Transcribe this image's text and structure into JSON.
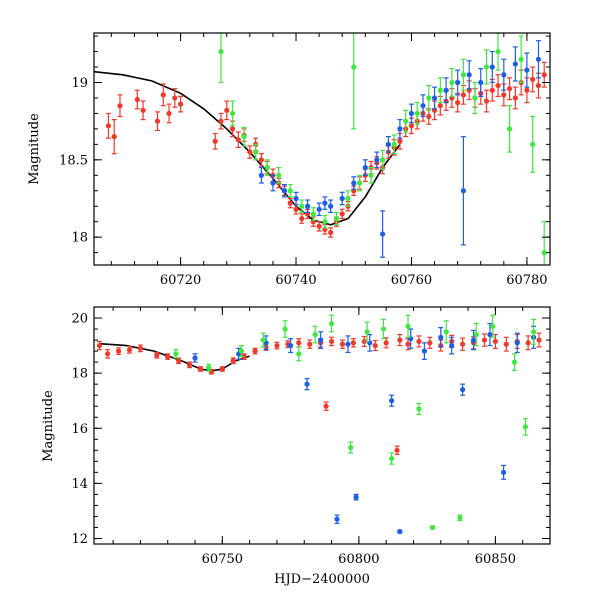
{
  "chart_data": [
    {
      "type": "scatter",
      "xlabel": "",
      "ylabel": "Magnitude",
      "xlim": [
        60705,
        60784
      ],
      "ylim": [
        19.32,
        17.82
      ],
      "y_inverted": true,
      "xticks": [
        60720,
        60740,
        60760,
        60780
      ],
      "yticks": [
        18,
        18.5,
        19
      ],
      "xtick_labels": [
        "60720",
        "60740",
        "60760",
        "60780"
      ],
      "ytick_labels": [
        "18",
        "18.5",
        "19"
      ],
      "model_curve": {
        "color": "#000000",
        "x": [
          60705,
          60710,
          60715,
          60720,
          60724,
          60728,
          60732,
          60736,
          60740,
          60743,
          60746,
          60749,
          60752,
          60755,
          60758
        ],
        "y": [
          19.07,
          19.05,
          19.01,
          18.93,
          18.83,
          18.7,
          18.55,
          18.38,
          18.2,
          18.11,
          18.08,
          18.12,
          18.26,
          18.45,
          18.6
        ]
      },
      "series": [
        {
          "color": "#ef3a2b",
          "x": [
            60707.5,
            60708.5,
            60709.5,
            60712.5,
            60713.5,
            60716,
            60717,
            60718,
            60719,
            60720,
            60726,
            60727,
            60728,
            60729,
            60730,
            60731,
            60732,
            60733,
            60734,
            60735,
            60736,
            60737,
            60738,
            60739,
            60740,
            60741,
            60742,
            60743,
            60744,
            60745,
            60746,
            60747,
            60748,
            60749,
            60750,
            60751,
            60752,
            60753,
            60754,
            60755,
            60756,
            60757,
            60758,
            60759,
            60760,
            60761,
            60762,
            60763,
            60764,
            60765,
            60766,
            60767,
            60768,
            60769,
            60770,
            60771,
            60772,
            60773,
            60774,
            60775,
            60776,
            60777,
            60778,
            60779,
            60780,
            60781,
            60782,
            60783
          ],
          "y": [
            18.72,
            18.65,
            18.85,
            18.89,
            18.82,
            18.75,
            18.92,
            18.8,
            18.9,
            18.86,
            18.62,
            18.75,
            18.82,
            18.7,
            18.63,
            18.66,
            18.55,
            18.6,
            18.5,
            18.45,
            18.4,
            18.35,
            18.3,
            18.22,
            18.18,
            18.12,
            18.15,
            18.1,
            18.07,
            18.05,
            18.03,
            18.1,
            18.15,
            18.2,
            18.3,
            18.35,
            18.4,
            18.45,
            18.48,
            18.45,
            18.55,
            18.58,
            18.62,
            18.7,
            18.72,
            18.75,
            18.8,
            18.78,
            18.82,
            18.85,
            18.88,
            18.9,
            18.87,
            18.92,
            18.95,
            18.9,
            18.93,
            18.88,
            18.95,
            18.98,
            18.92,
            18.96,
            18.9,
            19.0,
            18.95,
            19.02,
            18.98,
            19.05
          ],
          "err": [
            0.08,
            0.11,
            0.07,
            0.06,
            0.06,
            0.06,
            0.07,
            0.06,
            0.06,
            0.05,
            0.05,
            0.05,
            0.06,
            0.05,
            0.05,
            0.04,
            0.04,
            0.04,
            0.04,
            0.04,
            0.04,
            0.03,
            0.03,
            0.03,
            0.03,
            0.03,
            0.03,
            0.03,
            0.03,
            0.03,
            0.03,
            0.03,
            0.03,
            0.03,
            0.03,
            0.04,
            0.04,
            0.04,
            0.04,
            0.04,
            0.04,
            0.05,
            0.05,
            0.05,
            0.05,
            0.05,
            0.05,
            0.05,
            0.06,
            0.06,
            0.06,
            0.06,
            0.06,
            0.06,
            0.06,
            0.06,
            0.07,
            0.07,
            0.07,
            0.07,
            0.07,
            0.07,
            0.07,
            0.08,
            0.08,
            0.08,
            0.08,
            0.08
          ]
        },
        {
          "color": "#1c5ee8",
          "x": [
            60734,
            60736,
            60738,
            60740,
            60742,
            60744,
            60745,
            60746,
            60748,
            60750,
            60752,
            60754,
            60755,
            60756,
            60758,
            60760,
            60762,
            60764,
            60766,
            60768,
            60769,
            60770,
            60772,
            60774,
            60776,
            60778,
            60780,
            60782
          ],
          "y": [
            18.4,
            18.35,
            18.3,
            18.25,
            18.2,
            18.18,
            18.22,
            18.2,
            18.25,
            18.35,
            18.45,
            18.5,
            18.02,
            18.6,
            18.7,
            18.8,
            18.85,
            18.9,
            18.95,
            19.0,
            18.3,
            19.05,
            19.0,
            19.1,
            19.05,
            19.12,
            19.08,
            19.15
          ],
          "err": [
            0.05,
            0.05,
            0.04,
            0.04,
            0.04,
            0.04,
            0.04,
            0.04,
            0.04,
            0.04,
            0.05,
            0.05,
            0.15,
            0.05,
            0.06,
            0.06,
            0.07,
            0.07,
            0.08,
            0.08,
            0.35,
            0.09,
            0.09,
            0.1,
            0.1,
            0.11,
            0.11,
            0.12
          ]
        },
        {
          "color": "#3ee83e",
          "x": [
            60727,
            60729,
            60731,
            60733,
            60735,
            60737,
            60739,
            60741,
            60743,
            60745,
            60747,
            60749,
            60750,
            60751,
            60753,
            60755,
            60757,
            60759,
            60761,
            60763,
            60765,
            60767,
            60769,
            60771,
            60773,
            60775,
            60777,
            60779,
            60781,
            60783
          ],
          "y": [
            19.2,
            18.8,
            18.65,
            18.55,
            18.45,
            18.4,
            18.3,
            18.2,
            18.15,
            18.1,
            18.12,
            18.25,
            19.1,
            18.35,
            18.4,
            18.5,
            18.6,
            18.75,
            18.8,
            18.9,
            18.95,
            19.0,
            19.05,
            18.9,
            19.1,
            19.2,
            18.7,
            19.15,
            18.6,
            17.9
          ],
          "err": [
            0.2,
            0.08,
            0.06,
            0.05,
            0.05,
            0.05,
            0.04,
            0.04,
            0.04,
            0.04,
            0.04,
            0.05,
            0.4,
            0.05,
            0.05,
            0.06,
            0.06,
            0.07,
            0.07,
            0.08,
            0.08,
            0.09,
            0.1,
            0.1,
            0.11,
            0.12,
            0.15,
            0.15,
            0.18,
            0.2
          ]
        }
      ]
    },
    {
      "type": "scatter",
      "xlabel": "HJD−2400000",
      "ylabel": "Magnitude",
      "xlim": [
        60703,
        60870
      ],
      "ylim": [
        20.4,
        11.8
      ],
      "y_inverted": true,
      "xticks": [
        60750,
        60800,
        60850
      ],
      "yticks": [
        12,
        14,
        16,
        18,
        20
      ],
      "xtick_labels": [
        "60750",
        "60800",
        "60850"
      ],
      "ytick_labels": [
        "12",
        "14",
        "16",
        "18",
        "20"
      ],
      "model_curve": {
        "color": "#000000",
        "x": [
          60705,
          60715,
          60725,
          60735,
          60742,
          60746,
          60750,
          60755,
          60760
        ],
        "y": [
          19.07,
          19.0,
          18.8,
          18.45,
          18.15,
          18.08,
          18.15,
          18.45,
          18.62
        ]
      },
      "series": [
        {
          "color": "#ef3a2b",
          "x": [
            60705,
            60708,
            60712,
            60716,
            60720,
            60726,
            60730,
            60734,
            60738,
            60742,
            60746,
            60750,
            60754,
            60758,
            60762,
            60766,
            60770,
            60774,
            60778,
            60782,
            60786,
            60788,
            60790,
            60794,
            60798,
            60802,
            60806,
            60810,
            60814,
            60815,
            60818,
            60822,
            60826,
            60830,
            60834,
            60838,
            60842,
            60846,
            60850,
            60854,
            60858,
            60862,
            60866
          ],
          "y": [
            19.0,
            18.7,
            18.8,
            18.85,
            18.9,
            18.65,
            18.6,
            18.45,
            18.3,
            18.15,
            18.05,
            18.15,
            18.45,
            18.6,
            18.8,
            18.95,
            19.0,
            19.05,
            19.1,
            19.05,
            19.1,
            16.8,
            19.15,
            19.05,
            19.1,
            19.15,
            19.0,
            19.1,
            15.2,
            19.2,
            19.05,
            19.15,
            19.1,
            19.0,
            19.15,
            19.05,
            19.1,
            19.2,
            19.15,
            19.05,
            19.15,
            19.1,
            19.2
          ],
          "err": [
            0.15,
            0.15,
            0.12,
            0.12,
            0.12,
            0.1,
            0.1,
            0.1,
            0.1,
            0.08,
            0.08,
            0.08,
            0.1,
            0.1,
            0.1,
            0.12,
            0.12,
            0.12,
            0.15,
            0.15,
            0.15,
            0.15,
            0.15,
            0.15,
            0.15,
            0.18,
            0.18,
            0.18,
            0.15,
            0.2,
            0.2,
            0.2,
            0.2,
            0.2,
            0.22,
            0.22,
            0.22,
            0.22,
            0.25,
            0.25,
            0.25,
            0.25,
            0.25
          ]
        },
        {
          "color": "#1c5ee8",
          "x": [
            60740,
            60756,
            60766,
            60775,
            60781,
            60786,
            60792,
            60796,
            60799,
            60804,
            60812,
            60815,
            60819,
            60824,
            60830,
            60834,
            60838,
            60842,
            60848,
            60853,
            60858,
            60864
          ],
          "y": [
            18.55,
            18.7,
            19.1,
            19.0,
            17.6,
            19.2,
            12.7,
            19.05,
            13.5,
            19.1,
            17.0,
            12.25,
            19.25,
            18.8,
            19.3,
            19.0,
            17.4,
            19.2,
            19.4,
            14.4,
            19.1,
            19.3
          ],
          "err": [
            0.15,
            0.2,
            0.25,
            0.25,
            0.2,
            0.3,
            0.15,
            0.3,
            0.1,
            0.3,
            0.2,
            0.05,
            0.35,
            0.3,
            0.35,
            0.3,
            0.2,
            0.35,
            0.4,
            0.25,
            0.35,
            0.4
          ]
        },
        {
          "color": "#3ee83e",
          "x": [
            60733,
            60745,
            60757,
            60765,
            60773,
            60778,
            60784,
            60790,
            60797,
            60803,
            60809,
            60812,
            60818,
            60822,
            60827,
            60832,
            60837,
            60843,
            60849,
            60857,
            60861,
            60864
          ],
          "y": [
            18.7,
            18.2,
            18.8,
            19.2,
            19.6,
            18.7,
            19.4,
            19.8,
            15.3,
            19.5,
            19.6,
            14.9,
            19.7,
            16.7,
            12.4,
            19.5,
            12.75,
            19.4,
            19.7,
            18.4,
            16.05,
            19.5
          ],
          "err": [
            0.15,
            0.12,
            0.2,
            0.25,
            0.3,
            0.25,
            0.3,
            0.3,
            0.2,
            0.35,
            0.35,
            0.2,
            0.4,
            0.2,
            0.05,
            0.4,
            0.1,
            0.4,
            0.4,
            0.3,
            0.3,
            0.45
          ]
        }
      ]
    }
  ]
}
